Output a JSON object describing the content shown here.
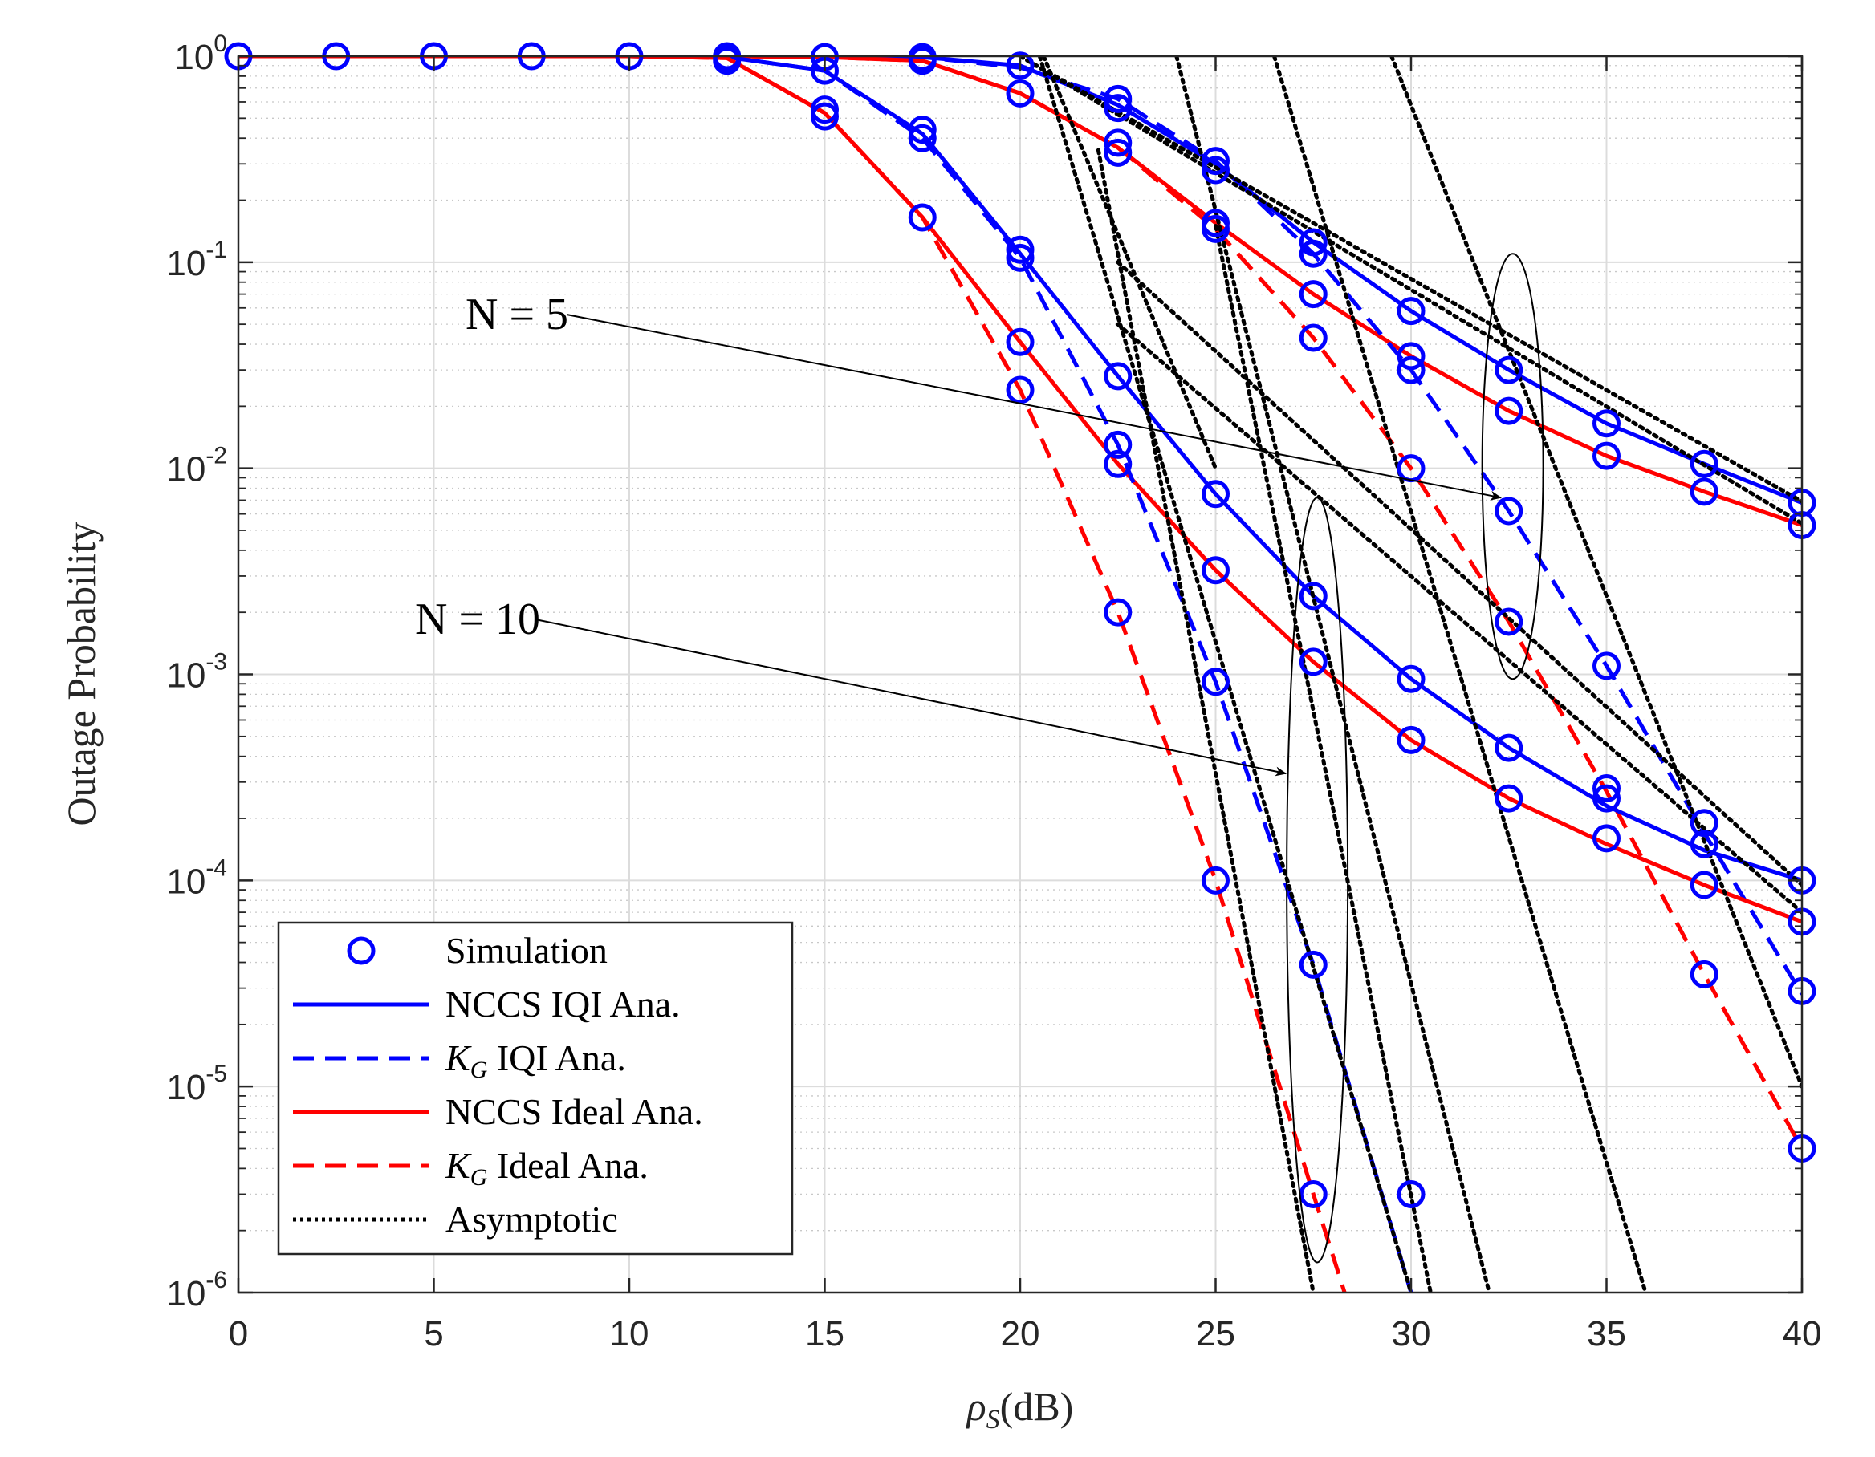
{
  "chart_data": {
    "type": "line",
    "title": "",
    "xlabel": "ρ",
    "xlabel_sub": "S",
    "xlabel_unit": "(dB)",
    "ylabel": "Outage Probability",
    "xlim": [
      0,
      40
    ],
    "ylim_log10": [
      -6,
      0
    ],
    "yscale": "log",
    "grid": true,
    "x_ticks": [
      "0",
      "5",
      "10",
      "15",
      "20",
      "25",
      "30",
      "35",
      "40"
    ],
    "y_ticks": [
      {
        "base": "10",
        "exp": "0"
      },
      {
        "base": "10",
        "exp": "-1"
      },
      {
        "base": "10",
        "exp": "-2"
      },
      {
        "base": "10",
        "exp": "-3"
      },
      {
        "base": "10",
        "exp": "-4"
      },
      {
        "base": "10",
        "exp": "-5"
      },
      {
        "base": "10",
        "exp": "-6"
      }
    ],
    "colors": {
      "blue": "#0000ff",
      "red": "#ff0000",
      "black": "#000000",
      "grid": "#dcdcdc"
    },
    "legend": {
      "position": "bottom-left",
      "entries": [
        {
          "label": "Simulation",
          "style": "marker"
        },
        {
          "label": "NCCS IQI Ana.",
          "style": "blue-solid"
        },
        {
          "label_math": "K",
          "label_sub": "G",
          "label": " IQI Ana.",
          "style": "blue-dashed"
        },
        {
          "label": "NCCS Ideal Ana.",
          "style": "red-solid"
        },
        {
          "label_math": "K",
          "label_sub": "G",
          "label": " Ideal Ana.",
          "style": "red-dashed"
        },
        {
          "label": "Asymptotic",
          "style": "black-dotted"
        }
      ]
    },
    "annotations": [
      {
        "text": "N = 5",
        "arrow_to_x": 32.3,
        "arrow_to_y": 0.0072
      },
      {
        "text": "N = 10",
        "arrow_to_x": 26.8,
        "arrow_to_y": 0.00033
      }
    ],
    "ellipse_groups": [
      {
        "x": 32.6,
        "y_top": 0.11,
        "y_bottom": 0.00095
      },
      {
        "x": 27.6,
        "y_top": 0.0072,
        "y_bottom": 1.4e-06
      }
    ],
    "series": [
      {
        "name": "NCCS IQI Ana. (N=5)",
        "color": "blue",
        "dash": "solid",
        "x": [
          0,
          10,
          12.5,
          15,
          17.5,
          20,
          22.5,
          25,
          27.5,
          30,
          32.5,
          35,
          37.5,
          40
        ],
        "y": [
          1.0,
          1.0,
          1.0,
          1.0,
          0.99,
          0.9,
          0.58,
          0.3,
          0.125,
          0.058,
          0.03,
          0.0165,
          0.0105,
          0.0068
        ]
      },
      {
        "name": "NCCS Ideal Ana. (N=5)",
        "color": "red",
        "dash": "solid",
        "x": [
          0,
          10,
          12.5,
          15,
          17.5,
          20,
          22.5,
          25,
          27.5,
          30,
          32.5,
          35,
          37.5,
          40
        ],
        "y": [
          1.0,
          1.0,
          1.0,
          0.99,
          0.95,
          0.66,
          0.36,
          0.155,
          0.07,
          0.035,
          0.019,
          0.0115,
          0.0077,
          0.0053
        ]
      },
      {
        "name": "KG IQI Ana. (N=5)",
        "color": "blue",
        "dash": "dashed",
        "x": [
          0,
          10,
          12.5,
          15,
          17.5,
          20,
          22.5,
          25,
          27.5,
          30,
          32.5,
          35,
          37.5,
          40
        ],
        "y": [
          1.0,
          1.0,
          1.0,
          1.0,
          0.99,
          0.88,
          0.62,
          0.31,
          0.11,
          0.03,
          0.0062,
          0.0011,
          0.00017,
          2.8e-05
        ]
      },
      {
        "name": "KG Ideal Ana. (N=5)",
        "color": "red",
        "dash": "dashed",
        "x": [
          0,
          10,
          12.5,
          15,
          17.5,
          20,
          22.5,
          25,
          27.5,
          30,
          32.5,
          35,
          37.5,
          40
        ],
        "y": [
          1.0,
          1.0,
          1.0,
          0.99,
          0.95,
          0.66,
          0.36,
          0.145,
          0.043,
          0.01,
          0.0018,
          0.00027,
          3.5e-05,
          5e-06
        ]
      },
      {
        "name": "NCCS IQI Ana. (N=10)",
        "color": "blue",
        "dash": "solid",
        "x": [
          0,
          10,
          12.5,
          15,
          17.5,
          20,
          22.5,
          25,
          27.5,
          30,
          32.5,
          35,
          37.5,
          40
        ],
        "y": [
          1.0,
          1.0,
          0.99,
          0.85,
          0.42,
          0.11,
          0.028,
          0.0075,
          0.0024,
          0.00095,
          0.00044,
          0.00023,
          0.00014,
          0.0001
        ]
      },
      {
        "name": "NCCS Ideal Ana. (N=10)",
        "color": "red",
        "dash": "solid",
        "x": [
          0,
          10,
          12.5,
          15,
          17.5,
          20,
          22.5,
          25,
          27.5,
          30,
          32.5,
          35,
          37.5,
          40
        ],
        "y": [
          1.0,
          1.0,
          0.98,
          0.53,
          0.165,
          0.041,
          0.0105,
          0.0032,
          0.00115,
          0.00048,
          0.00025,
          0.00015,
          9.5e-05,
          6.3e-05
        ]
      },
      {
        "name": "KG IQI Ana. (N=10)",
        "color": "blue",
        "dash": "dashed",
        "x": [
          0,
          10,
          12.5,
          15,
          17.5,
          20,
          22.5,
          25,
          27.5,
          30
        ],
        "y": [
          1.0,
          1.0,
          0.99,
          0.85,
          0.4,
          0.105,
          0.013,
          0.00092,
          3.9e-05,
          1e-06
        ]
      },
      {
        "name": "KG Ideal Ana. (N=10)",
        "color": "red",
        "dash": "dashed",
        "x": [
          0,
          10,
          12.5,
          15,
          17.5,
          20,
          22.5,
          25,
          27.5,
          28.3
        ],
        "y": [
          1.0,
          1.0,
          0.98,
          0.53,
          0.165,
          0.024,
          0.002,
          0.0001,
          3e-06,
          1e-06
        ]
      }
    ],
    "simulation_points": {
      "x": [
        0,
        2.5,
        5,
        7.5,
        10
      ],
      "y": [
        1.0,
        1.0,
        1.0,
        1.0,
        1.0
      ],
      "extra": [
        {
          "x": 12.5,
          "y": 1.0
        },
        {
          "x": 12.5,
          "y": 0.98
        },
        {
          "x": 12.5,
          "y": 0.95
        },
        {
          "x": 15,
          "y": 0.99
        },
        {
          "x": 15,
          "y": 0.85
        },
        {
          "x": 15,
          "y": 0.55
        },
        {
          "x": 15,
          "y": 0.51
        },
        {
          "x": 17.5,
          "y": 0.99
        },
        {
          "x": 17.5,
          "y": 0.95
        },
        {
          "x": 17.5,
          "y": 0.44
        },
        {
          "x": 17.5,
          "y": 0.4
        },
        {
          "x": 17.5,
          "y": 0.165
        },
        {
          "x": 20,
          "y": 0.9
        },
        {
          "x": 20,
          "y": 0.66
        },
        {
          "x": 20,
          "y": 0.115
        },
        {
          "x": 20,
          "y": 0.105
        },
        {
          "x": 20,
          "y": 0.041
        },
        {
          "x": 20,
          "y": 0.024
        },
        {
          "x": 22.5,
          "y": 0.62
        },
        {
          "x": 22.5,
          "y": 0.56
        },
        {
          "x": 22.5,
          "y": 0.38
        },
        {
          "x": 22.5,
          "y": 0.34
        },
        {
          "x": 22.5,
          "y": 0.028
        },
        {
          "x": 22.5,
          "y": 0.013
        },
        {
          "x": 22.5,
          "y": 0.0105
        },
        {
          "x": 22.5,
          "y": 0.002
        },
        {
          "x": 25,
          "y": 0.31
        },
        {
          "x": 25,
          "y": 0.28
        },
        {
          "x": 25,
          "y": 0.155
        },
        {
          "x": 25,
          "y": 0.145
        },
        {
          "x": 25,
          "y": 0.0075
        },
        {
          "x": 25,
          "y": 0.0032
        },
        {
          "x": 25,
          "y": 0.00092
        },
        {
          "x": 25,
          "y": 0.0001
        },
        {
          "x": 27.5,
          "y": 0.125
        },
        {
          "x": 27.5,
          "y": 0.11
        },
        {
          "x": 27.5,
          "y": 0.07
        },
        {
          "x": 27.5,
          "y": 0.043
        },
        {
          "x": 27.5,
          "y": 0.0024
        },
        {
          "x": 27.5,
          "y": 0.00115
        },
        {
          "x": 27.5,
          "y": 3.9e-05
        },
        {
          "x": 27.5,
          "y": 3e-06
        },
        {
          "x": 30,
          "y": 0.058
        },
        {
          "x": 30,
          "y": 0.035
        },
        {
          "x": 30,
          "y": 0.03
        },
        {
          "x": 30,
          "y": 0.01
        },
        {
          "x": 30,
          "y": 0.00095
        },
        {
          "x": 30,
          "y": 0.00048
        },
        {
          "x": 30,
          "y": 3e-06
        },
        {
          "x": 32.5,
          "y": 0.03
        },
        {
          "x": 32.5,
          "y": 0.019
        },
        {
          "x": 32.5,
          "y": 0.0062
        },
        {
          "x": 32.5,
          "y": 0.0018
        },
        {
          "x": 32.5,
          "y": 0.00044
        },
        {
          "x": 32.5,
          "y": 0.00025
        },
        {
          "x": 35,
          "y": 0.0165
        },
        {
          "x": 35,
          "y": 0.0115
        },
        {
          "x": 35,
          "y": 0.0011
        },
        {
          "x": 35,
          "y": 0.00028
        },
        {
          "x": 35,
          "y": 0.00025
        },
        {
          "x": 35,
          "y": 0.00016
        },
        {
          "x": 37.5,
          "y": 0.0105
        },
        {
          "x": 37.5,
          "y": 0.0077
        },
        {
          "x": 37.5,
          "y": 0.00019
        },
        {
          "x": 37.5,
          "y": 0.00015
        },
        {
          "x": 37.5,
          "y": 9.5e-05
        },
        {
          "x": 37.5,
          "y": 3.5e-05
        },
        {
          "x": 40,
          "y": 0.0068
        },
        {
          "x": 40,
          "y": 0.0053
        },
        {
          "x": 40,
          "y": 0.0001
        },
        {
          "x": 40,
          "y": 6.3e-05
        },
        {
          "x": 40,
          "y": 2.9e-05
        },
        {
          "x": 40,
          "y": 5e-06
        }
      ]
    },
    "asymptotes": [
      {
        "x": [
          20.5,
          30.0
        ],
        "y": [
          1.0,
          1e-06
        ]
      },
      {
        "x": [
          24.0,
          32.0
        ],
        "y": [
          1.0,
          1e-06
        ]
      },
      {
        "x": [
          26.5,
          36.0
        ],
        "y": [
          1.0,
          1e-06
        ]
      },
      {
        "x": [
          29.5,
          40.0
        ],
        "y": [
          1.0,
          1e-05
        ]
      },
      {
        "x": [
          20.6,
          25.0
        ],
        "y": [
          1.0,
          0.01
        ]
      },
      {
        "x": [
          22.0,
          27.5
        ],
        "y": [
          0.35,
          1e-06
        ]
      },
      {
        "x": [
          25.0,
          30.5
        ],
        "y": [
          0.15,
          1e-06
        ]
      },
      {
        "x": [
          20.0,
          40.0
        ],
        "y": [
          1.0,
          0.0069
        ]
      },
      {
        "x": [
          20.0,
          40.0
        ],
        "y": [
          1.0,
          0.0054
        ]
      },
      {
        "x": [
          22.5,
          40.0
        ],
        "y": [
          0.1,
          9.5e-05
        ]
      },
      {
        "x": [
          22.5,
          40.0
        ],
        "y": [
          0.05,
          7e-05
        ]
      }
    ]
  }
}
